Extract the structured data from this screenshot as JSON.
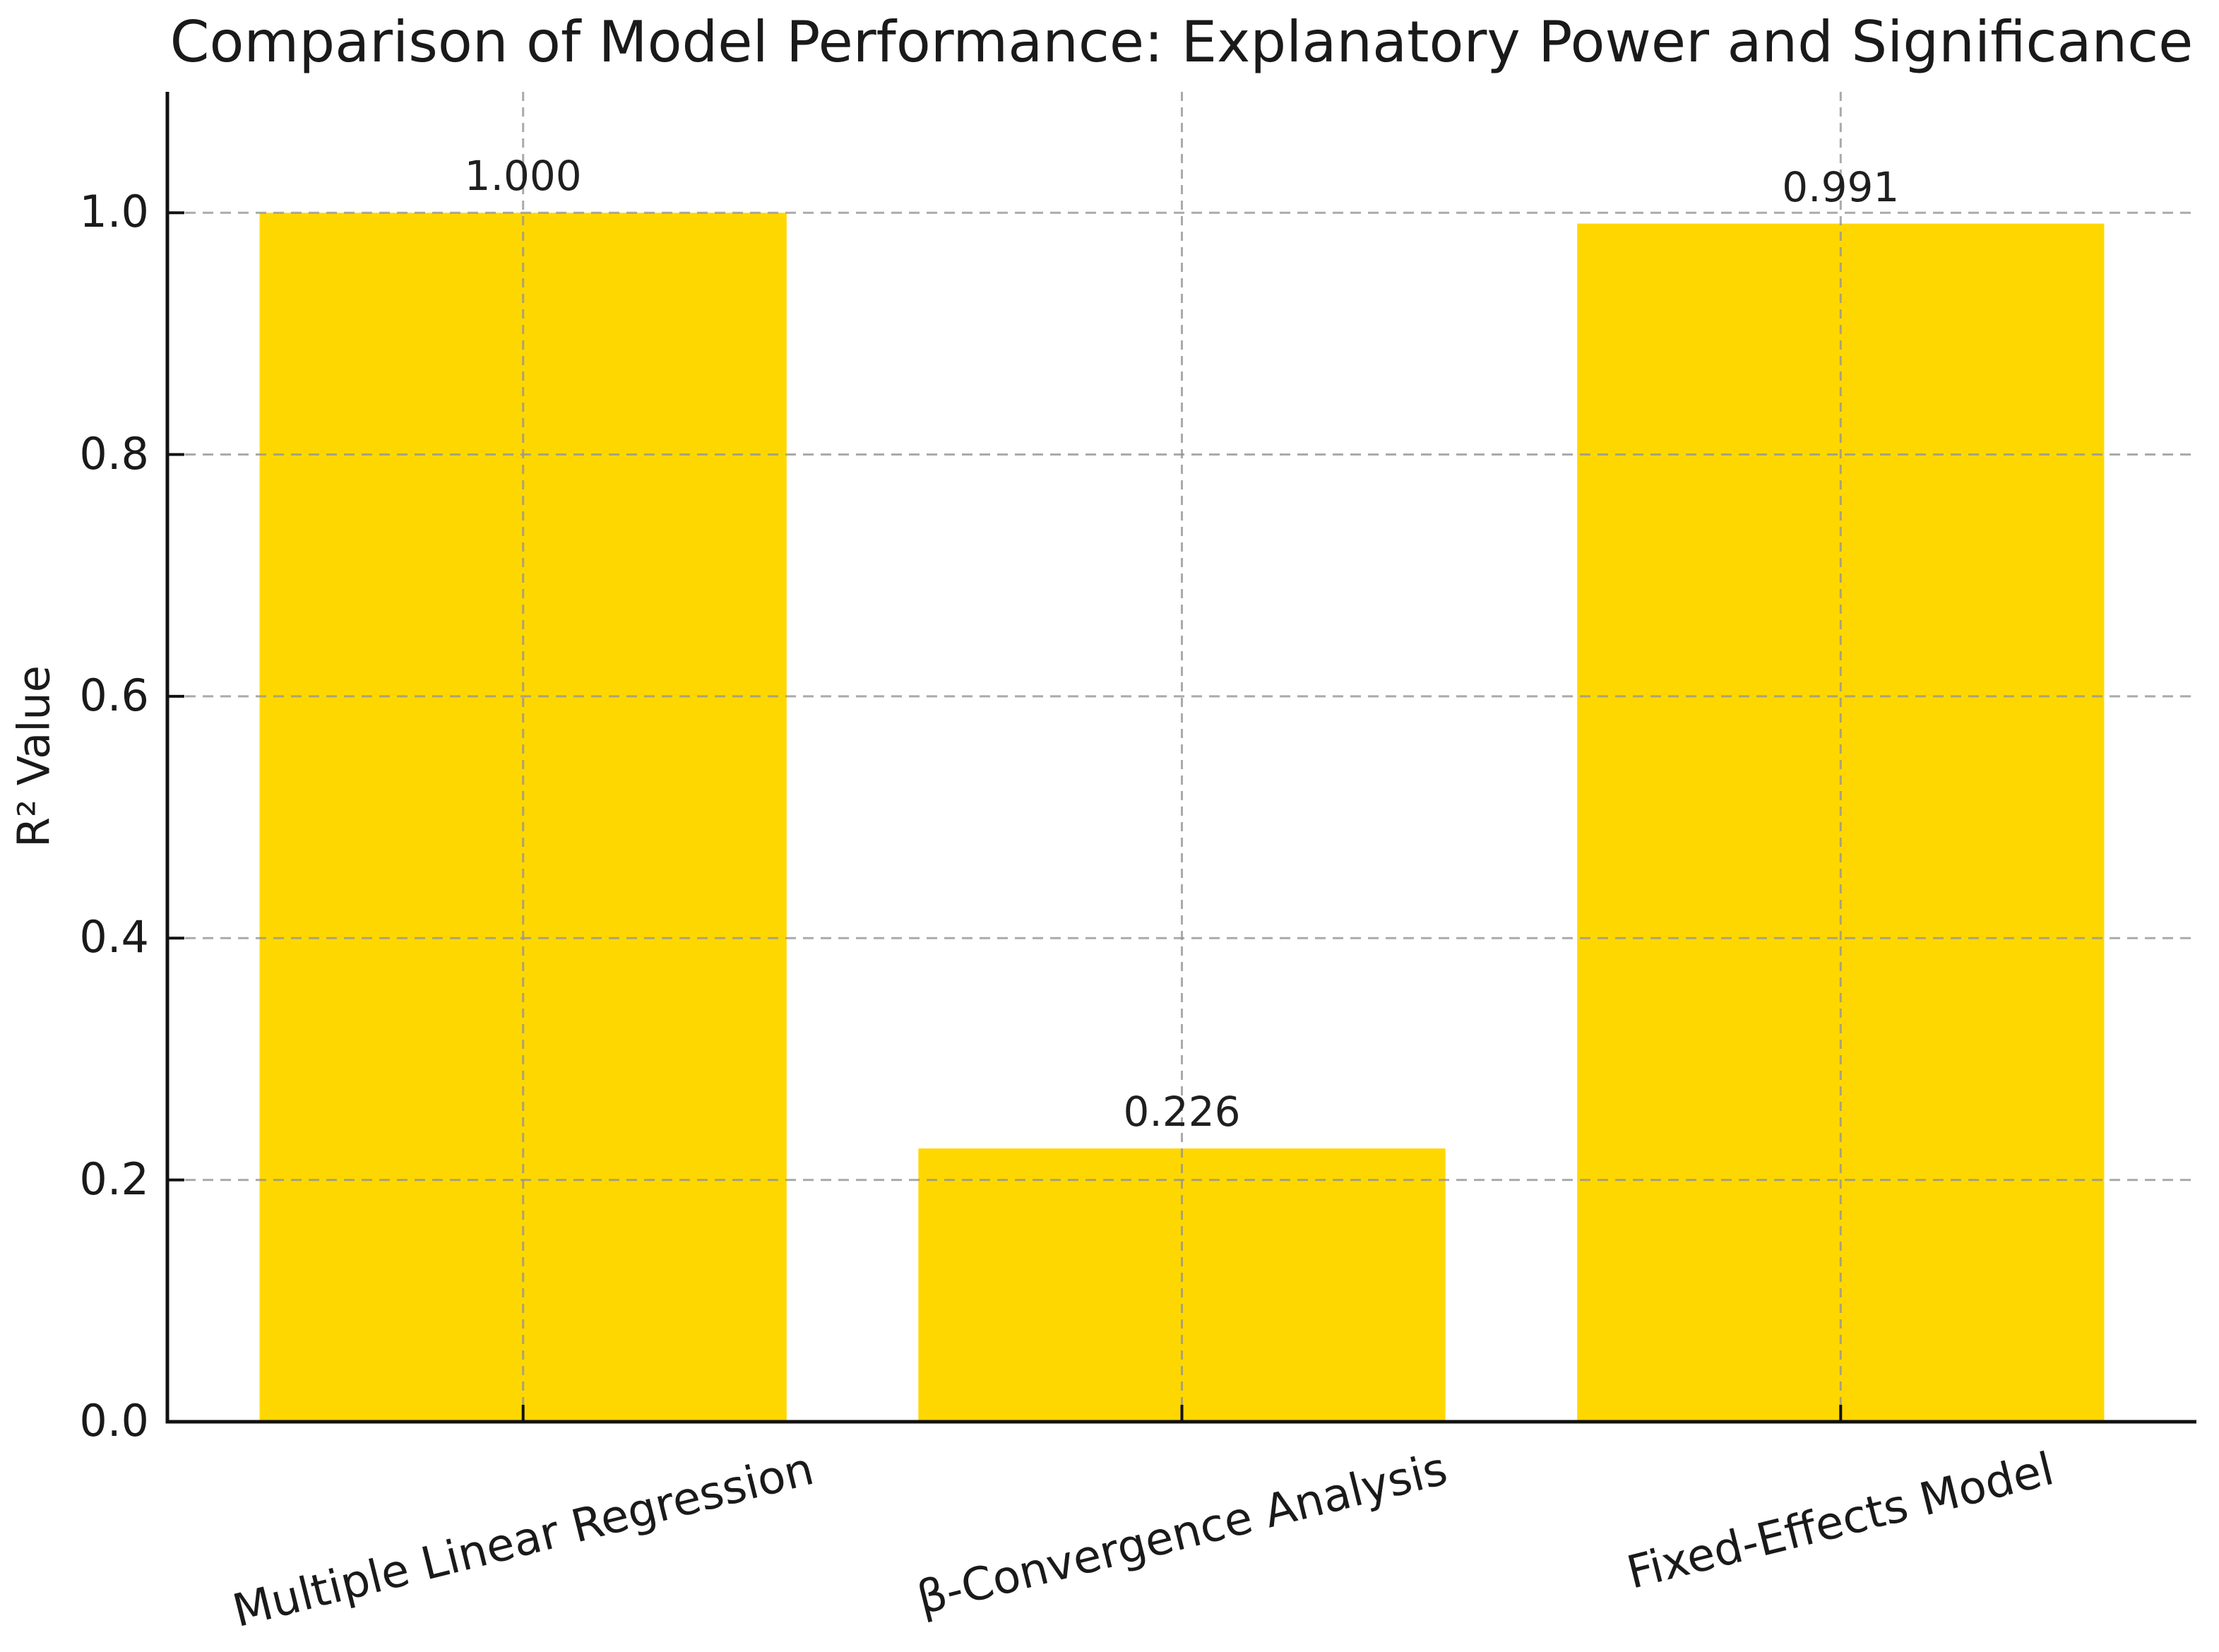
{
  "chart_data": {
    "type": "bar",
    "title": "Comparison of Model Performance: Explanatory Power and Significance",
    "xlabel": "",
    "ylabel": "R² Value",
    "categories": [
      "Multiple Linear Regression",
      "β-Convergence Analysis",
      "Fixed-Effects Model"
    ],
    "values": [
      1.0,
      0.226,
      0.991
    ],
    "value_labels": [
      "1.000",
      "0.226",
      "0.991"
    ],
    "ytick_labels": [
      "0.0",
      "0.2",
      "0.4",
      "0.6",
      "0.8",
      "1.0"
    ],
    "yticks": [
      0.0,
      0.2,
      0.4,
      0.6,
      0.8,
      1.0
    ],
    "ylim": [
      0,
      1.1
    ],
    "grid": true,
    "grid_style": "dashed",
    "grid_over_bars": true,
    "legend_position": "none",
    "colors": {
      "bar_fill": "#FFD700",
      "grid": "#969696",
      "spine": "#111111",
      "text": "#1a1a1a",
      "background": "#ffffff"
    }
  }
}
